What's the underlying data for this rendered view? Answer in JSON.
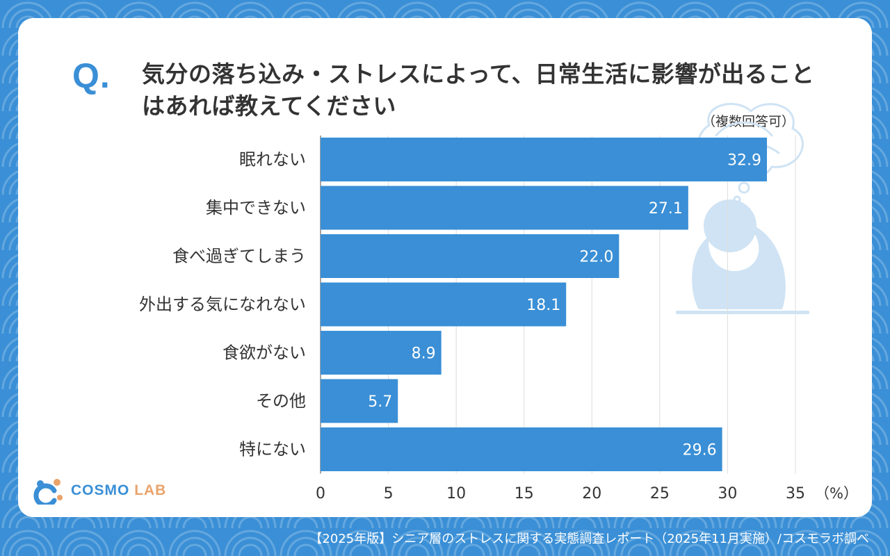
{
  "header": {
    "q_mark": "Q.",
    "title": "気分の落ち込み・ストレスによって、日常生活に影響が出ることはあれば教えてください",
    "note": "（複数回答可）"
  },
  "chart_data": {
    "type": "bar",
    "orientation": "horizontal",
    "categories": [
      "眠れない",
      "集中できない",
      "食べ過ぎてしまう",
      "外出する気になれない",
      "食欲がない",
      "その他",
      "特にない"
    ],
    "values": [
      32.9,
      27.1,
      22.0,
      18.1,
      8.9,
      5.7,
      29.6
    ],
    "value_labels": [
      "32.9",
      "27.1",
      "22.0",
      "18.1",
      "8.9",
      "5.7",
      "29.6"
    ],
    "x_ticks": [
      "0",
      "5",
      "10",
      "15",
      "20",
      "25",
      "30",
      "35"
    ],
    "x_unit": "（%）",
    "xlim": [
      0,
      35
    ],
    "bar_color": "#3a8fd6"
  },
  "logo": {
    "cosmo": "COSMO",
    "lab": "LAB"
  },
  "footer": "【2025年版】シニア層のストレスに関する実態調査レポート（2025年11月実施）/コスモラボ調べ",
  "colors": {
    "accent": "#3a8fd6",
    "illustration": "#cfe3f4",
    "logo_orange": "#e9a36b"
  }
}
